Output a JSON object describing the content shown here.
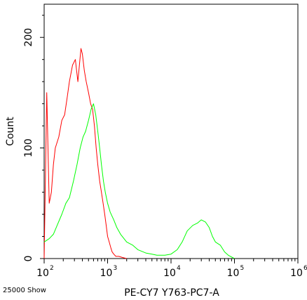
{
  "chart_data": {
    "type": "line",
    "title": "",
    "xlabel": "PE-CY7 Y763-PC7-A",
    "ylabel": "Count",
    "x_scale": "log",
    "xlim": [
      100,
      1000000
    ],
    "ylim": [
      0,
      230
    ],
    "x_ticks": [
      {
        "value": 100,
        "base": "10",
        "exp": "2"
      },
      {
        "value": 1000,
        "base": "10",
        "exp": "3"
      },
      {
        "value": 10000,
        "base": "10",
        "exp": "4"
      },
      {
        "value": 100000,
        "base": "10",
        "exp": "5"
      },
      {
        "value": 1000000,
        "base": "10",
        "exp": "6"
      }
    ],
    "y_ticks": [
      {
        "value": 0,
        "label": "0"
      },
      {
        "value": 100,
        "label": "100"
      },
      {
        "value": 200,
        "label": "200"
      }
    ],
    "grid": false,
    "series": [
      {
        "color": "#ff0000",
        "x": [
          100,
          110,
          120,
          130,
          140,
          150,
          170,
          190,
          210,
          230,
          250,
          280,
          310,
          340,
          380,
          400,
          430,
          460,
          500,
          540,
          580,
          620,
          660,
          700,
          750,
          800,
          850,
          900,
          950,
          1000,
          1060,
          1120,
          1180,
          1250,
          1350,
          1500,
          1700,
          2000
        ],
        "y": [
          0,
          150,
          50,
          60,
          85,
          100,
          110,
          125,
          130,
          145,
          160,
          175,
          180,
          160,
          190,
          185,
          170,
          160,
          150,
          140,
          135,
          120,
          100,
          85,
          70,
          60,
          50,
          40,
          30,
          20,
          15,
          10,
          6,
          4,
          2,
          2,
          1,
          0
        ]
      },
      {
        "color": "#00ff00",
        "x": [
          100,
          120,
          140,
          160,
          190,
          220,
          250,
          290,
          330,
          370,
          410,
          450,
          500,
          550,
          600,
          650,
          700,
          750,
          800,
          860,
          920,
          1000,
          1100,
          1250,
          1400,
          1600,
          2000,
          2500,
          3000,
          4000,
          5000,
          6000,
          8000,
          10000,
          12500,
          15000,
          18000,
          22000,
          26000,
          30000,
          35000,
          40000,
          45000,
          50000,
          60000,
          70000,
          80000,
          100000
        ],
        "y": [
          15,
          18,
          22,
          30,
          40,
          50,
          55,
          70,
          85,
          100,
          110,
          115,
          125,
          135,
          140,
          130,
          115,
          100,
          85,
          70,
          60,
          50,
          42,
          35,
          28,
          22,
          15,
          12,
          8,
          5,
          4,
          3,
          3,
          4,
          8,
          15,
          25,
          30,
          32,
          35,
          33,
          28,
          20,
          15,
          12,
          6,
          3,
          0
        ]
      }
    ]
  },
  "footer": {
    "left_text": "25000 Show"
  }
}
